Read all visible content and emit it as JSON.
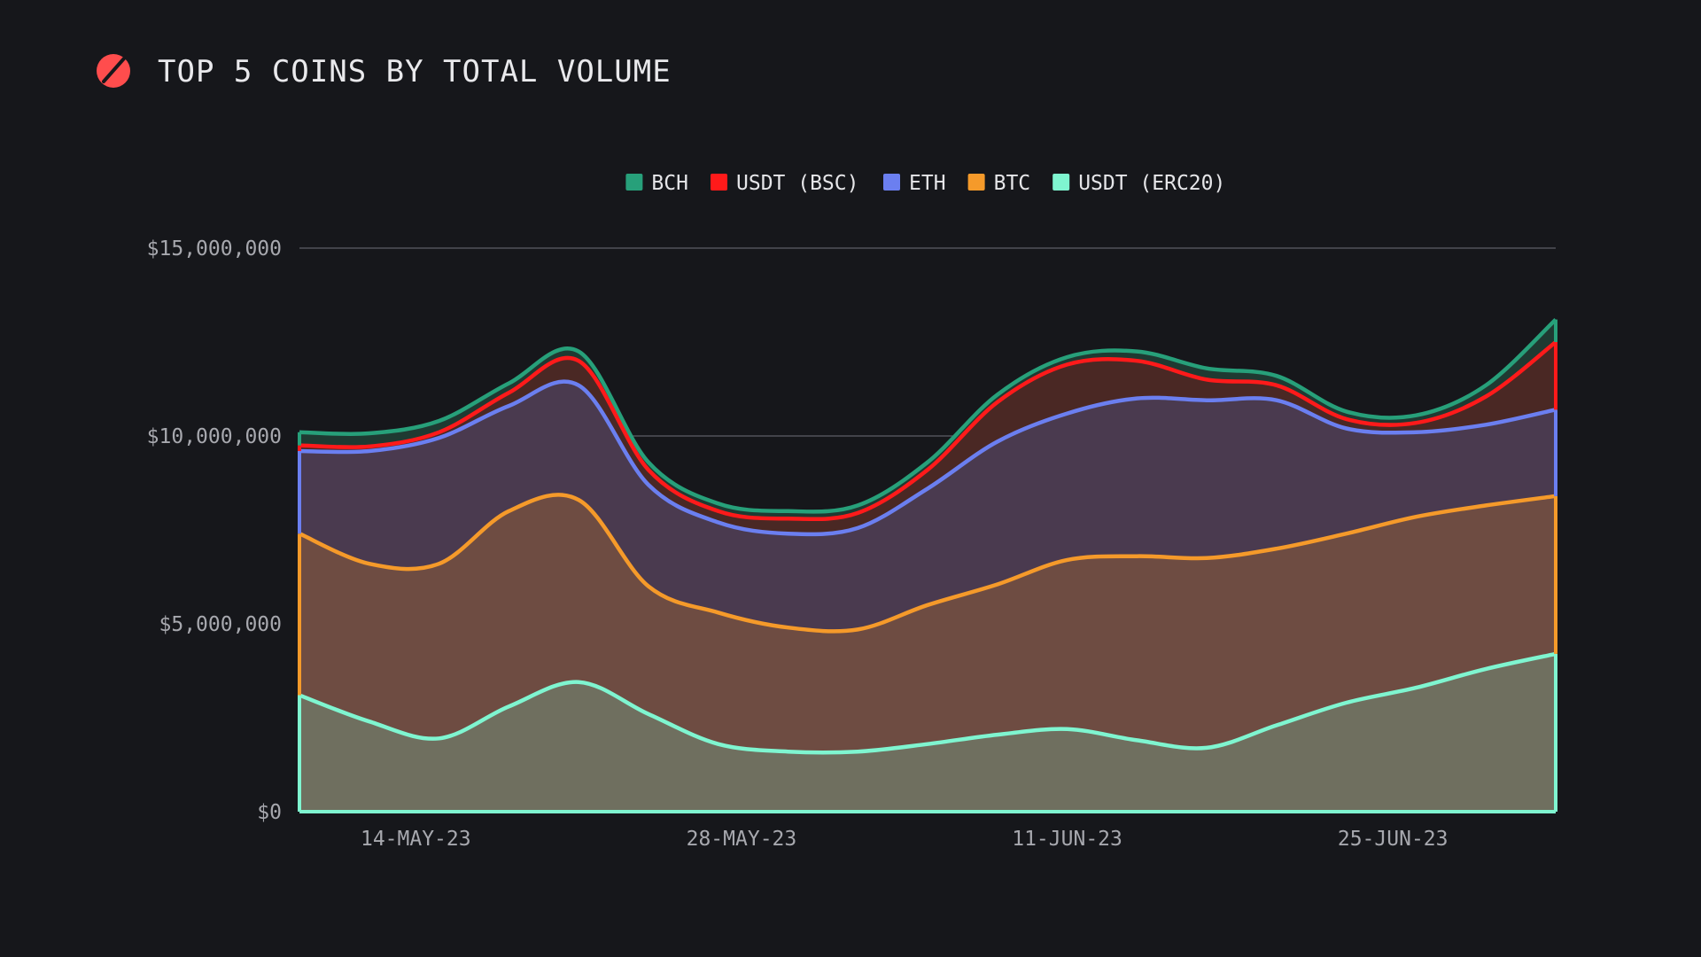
{
  "header": {
    "title": "TOP 5 COINS BY TOTAL VOLUME",
    "logo_icon": "slashed-circle-icon",
    "logo_color": "#ff4d4d"
  },
  "chart_data": {
    "type": "area",
    "stacked": true,
    "title": "TOP 5 COINS BY TOTAL VOLUME",
    "xlabel": "",
    "ylabel": "",
    "ylim": [
      0,
      15000000
    ],
    "yticks": [
      {
        "value": 0,
        "label": "$0"
      },
      {
        "value": 5000000,
        "label": "$5,000,000"
      },
      {
        "value": 10000000,
        "label": "$10,000,000"
      },
      {
        "value": 15000000,
        "label": "$15,000,000"
      }
    ],
    "x": [
      "2023-05-09",
      "2023-05-12",
      "2023-05-15",
      "2023-05-18",
      "2023-05-21",
      "2023-05-24",
      "2023-05-27",
      "2023-05-30",
      "2023-06-02",
      "2023-06-05",
      "2023-06-08",
      "2023-06-11",
      "2023-06-14",
      "2023-06-17",
      "2023-06-20",
      "2023-06-23",
      "2023-06-26",
      "2023-06-29",
      "2023-07-02"
    ],
    "xticks": [
      {
        "value": "2023-05-14",
        "label": "14-MAY-23"
      },
      {
        "value": "2023-05-28",
        "label": "28-MAY-23"
      },
      {
        "value": "2023-06-11",
        "label": "11-JUN-23"
      },
      {
        "value": "2023-06-25",
        "label": "25-JUN-23"
      }
    ],
    "grid": true,
    "legend_position": "top-center",
    "legend": [
      {
        "name": "BCH",
        "color": "#27a07a"
      },
      {
        "name": "USDT (BSC)",
        "color": "#ff1a1a"
      },
      {
        "name": "ETH",
        "color": "#6b7ff0"
      },
      {
        "name": "BTC",
        "color": "#f59a2a"
      },
      {
        "name": "USDT (ERC20)",
        "color": "#7ff5d0"
      }
    ],
    "series": [
      {
        "name": "USDT (ERC20)",
        "color": "#7ff5d0",
        "fill": "#6f6f5f",
        "values": [
          3100000,
          2400000,
          1950000,
          2800000,
          3450000,
          2600000,
          1800000,
          1600000,
          1600000,
          1800000,
          2050000,
          2200000,
          1900000,
          1700000,
          2300000,
          2900000,
          3300000,
          3800000,
          4200000
        ]
      },
      {
        "name": "BTC",
        "color": "#f59a2a",
        "fill": "#6e4c42",
        "values": [
          4300000,
          4200000,
          4650000,
          5200000,
          4850000,
          3400000,
          3500000,
          3300000,
          3250000,
          3700000,
          4000000,
          4500000,
          4900000,
          5050000,
          4700000,
          4500000,
          4550000,
          4350000,
          4200000
        ]
      },
      {
        "name": "ETH",
        "color": "#6b7ff0",
        "fill": "#4a3a4f",
        "values": [
          2200000,
          3000000,
          3350000,
          2800000,
          3050000,
          2700000,
          2400000,
          2500000,
          2700000,
          3100000,
          3800000,
          3900000,
          4200000,
          4200000,
          3950000,
          2800000,
          2250000,
          2150000,
          2300000
        ]
      },
      {
        "name": "USDT (BSC)",
        "color": "#ff1a1a",
        "fill": "#4a2824",
        "values": [
          150000,
          120000,
          150000,
          350000,
          650000,
          400000,
          300000,
          400000,
          400000,
          500000,
          1050000,
          1300000,
          1000000,
          550000,
          400000,
          250000,
          250000,
          750000,
          1800000
        ]
      },
      {
        "name": "BCH",
        "color": "#27a07a",
        "fill": "#1f3a32",
        "values": [
          350000,
          350000,
          300000,
          250000,
          250000,
          200000,
          200000,
          200000,
          200000,
          200000,
          200000,
          200000,
          250000,
          300000,
          250000,
          200000,
          200000,
          300000,
          600000
        ]
      }
    ]
  }
}
